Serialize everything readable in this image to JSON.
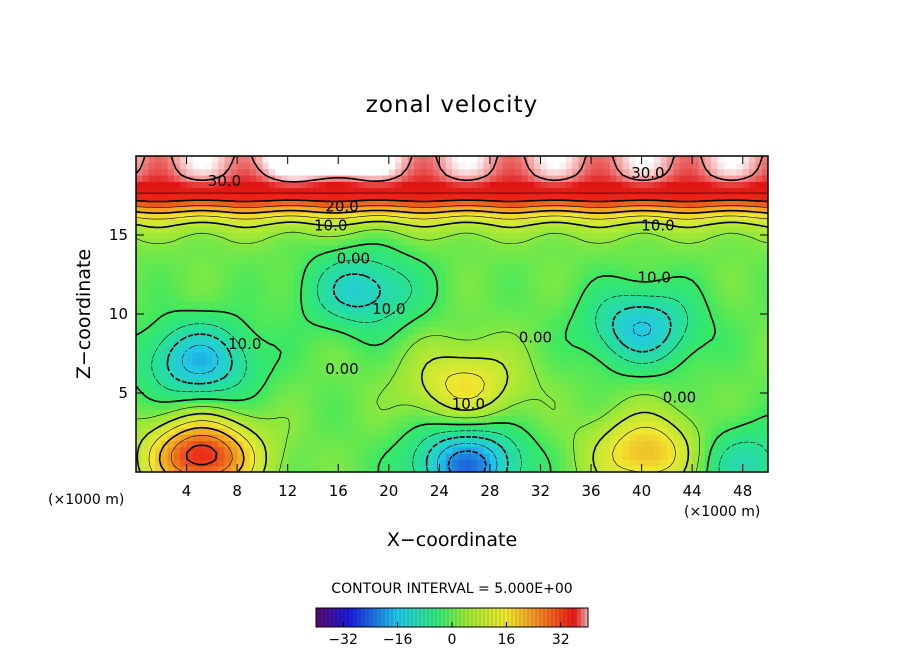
{
  "chart_data": {
    "type": "contour",
    "title": "zonal velocity",
    "xlabel": "X−coordinate",
    "ylabel": "Z−coordinate",
    "x_unit": "(×1000 m)",
    "z_unit": "(×1000 m)",
    "xlim": [
      0,
      50
    ],
    "zlim": [
      0,
      20
    ],
    "x_ticks": [
      4,
      8,
      12,
      16,
      20,
      24,
      28,
      32,
      36,
      40,
      44,
      48
    ],
    "z_ticks": [
      5,
      10,
      15
    ],
    "contour_interval_label": "CONTOUR INTERVAL = 5.000E+00",
    "contour_interval": 5,
    "colorbar": {
      "min": -40,
      "max": 40,
      "ticks": [
        "−32",
        "−16",
        "0",
        "16",
        "32"
      ]
    },
    "contour_labels": [
      {
        "text": "30.0",
        "x": 7,
        "z": 18.1
      },
      {
        "text": "30.0",
        "x": 40.5,
        "z": 18.6
      },
      {
        "text": "20.0",
        "x": 16.3,
        "z": 16.5
      },
      {
        "text": "10.0",
        "x": 15.4,
        "z": 15.3
      },
      {
        "text": "10.0",
        "x": 41.3,
        "z": 15.3
      },
      {
        "text": "0.00",
        "x": 17.2,
        "z": 13.2
      },
      {
        "text": "10.0",
        "x": 20,
        "z": 10
      },
      {
        "text": "10.0",
        "x": 41,
        "z": 12
      },
      {
        "text": "10.0",
        "x": 8.6,
        "z": 7.8
      },
      {
        "text": "0.00",
        "x": 16.3,
        "z": 6.2
      },
      {
        "text": "0.00",
        "x": 31.6,
        "z": 8.2
      },
      {
        "text": "0.00",
        "x": 43,
        "z": 4.4
      },
      {
        "text": "10.0",
        "x": 26.3,
        "z": 4
      }
    ],
    "field_features": [
      {
        "x": 5,
        "z": 7,
        "value": -18
      },
      {
        "x": 18,
        "z": 11.5,
        "value": -14
      },
      {
        "x": 40,
        "z": 9.2,
        "value": -16
      },
      {
        "x": 26,
        "z": 5.5,
        "value": 16
      },
      {
        "x": 5.2,
        "z": 1,
        "value": 32
      },
      {
        "x": 26.2,
        "z": 0.5,
        "value": -24
      },
      {
        "x": 40.5,
        "z": 1.2,
        "value": 20
      },
      {
        "x": 48,
        "z": 0.5,
        "value": -10
      },
      {
        "x": 15,
        "z": 19.5,
        "value": 42
      },
      {
        "x": 25,
        "z": 18.5,
        "value": 34
      }
    ]
  }
}
